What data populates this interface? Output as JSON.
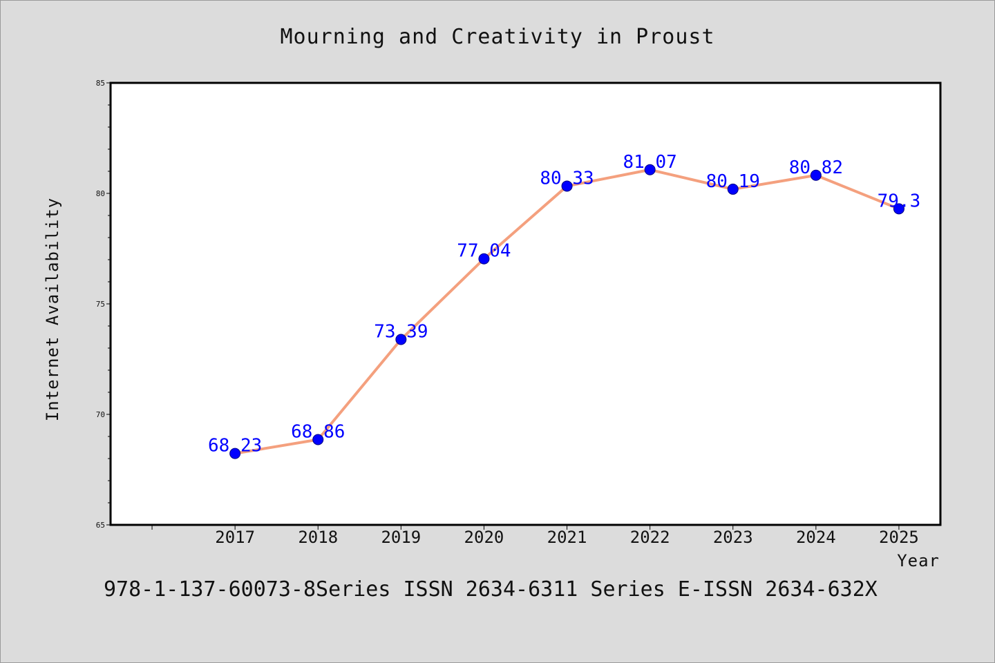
{
  "colors": {
    "background": "#dcdcdc",
    "plot_area": "#ffffff",
    "line": "#f4a07e",
    "marker": "#0000ff",
    "data_label": "#0000ff"
  },
  "caption": "978-1-137-60073-8Series ISSN 2634-6311 Series E-ISSN 2634-632X",
  "chart_data": {
    "type": "line",
    "title": "Mourning and Creativity in Proust",
    "xlabel": "Year",
    "ylabel": "Internet Availability",
    "categories": [
      "2017",
      "2018",
      "2019",
      "2020",
      "2021",
      "2022",
      "2023",
      "2024",
      "2025"
    ],
    "x_range": [
      2015.5,
      2025.5
    ],
    "ylim": [
      65,
      85
    ],
    "yticks": [
      65,
      70,
      75,
      80,
      85
    ],
    "grid": false,
    "legend": "none",
    "series": [
      {
        "values": [
          68.23,
          68.86,
          73.39,
          77.04,
          80.33,
          81.07,
          80.19,
          80.82,
          79.3
        ],
        "labels": [
          "68.23",
          "68.86",
          "73.39",
          "77.04",
          "80.33",
          "81.07",
          "80.19",
          "80.82",
          "79.3"
        ]
      }
    ]
  }
}
